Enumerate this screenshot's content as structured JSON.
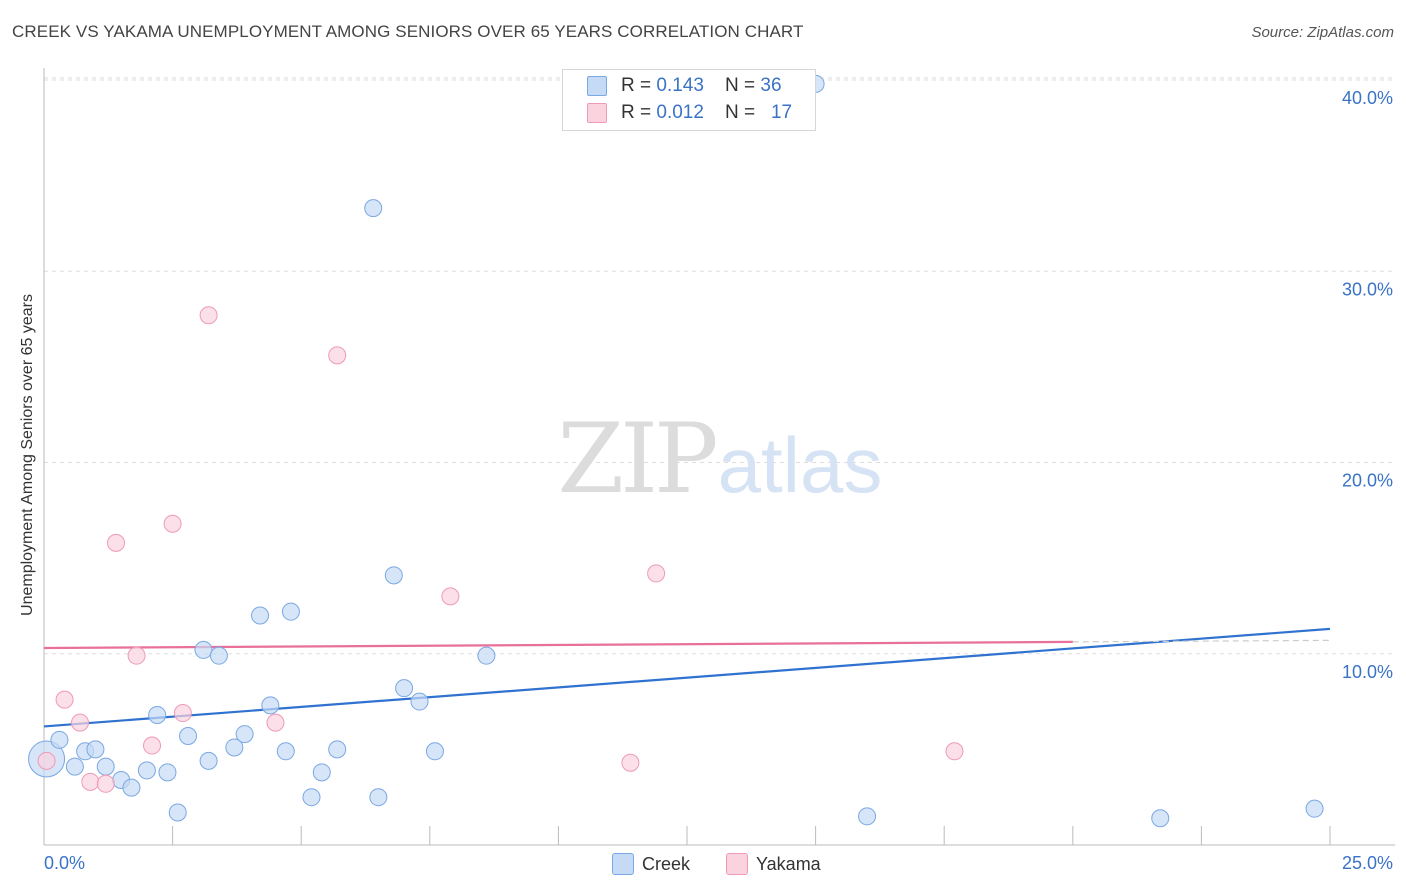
{
  "title": "CREEK VS YAKAMA UNEMPLOYMENT AMONG SENIORS OVER 65 YEARS CORRELATION CHART",
  "source": "Source: ZipAtlas.com",
  "watermark": {
    "part1": "ZIP",
    "part2": "atlas"
  },
  "legend": {
    "rows": [
      {
        "r_label": "R = ",
        "r_value": "0.143",
        "n_label": "N = ",
        "n_value": "36",
        "color": "#a9c8f0",
        "border": "#6f9ee0"
      },
      {
        "r_label": "R = ",
        "r_value": "0.012",
        "n_label": "N = ",
        "n_value": "17",
        "color": "#f8c2d2",
        "border": "#ee8fad"
      }
    ]
  },
  "bottom_legend": {
    "creek": "Creek",
    "yakama": "Yakama"
  },
  "colors": {
    "creek_fill": "#c5daf5",
    "creek_stroke": "#7aa8e2",
    "creek_line": "#2f72d0",
    "yakama_fill": "#fad3df",
    "yakama_stroke": "#ef9ab5",
    "yakama_line": "#e8709a",
    "tick_label": "#3a73c6"
  },
  "chart_data": {
    "type": "scatter",
    "title": "CREEK VS YAKAMA UNEMPLOYMENT AMONG SENIORS OVER 65 YEARS CORRELATION CHART",
    "xlabel": "",
    "ylabel": "Unemployment Among Seniors over 65 years",
    "xlim": [
      0,
      25
    ],
    "ylim": [
      0,
      40
    ],
    "x_tick_labels": [
      "0.0%",
      "25.0%"
    ],
    "y_ticks": [
      10,
      20,
      30,
      40
    ],
    "y_tick_labels": [
      "10.0%",
      "20.0%",
      "30.0%",
      "40.0%"
    ],
    "grid": true,
    "series": [
      {
        "name": "Creek",
        "r": 0.143,
        "n": 36,
        "points": [
          {
            "x": 0.05,
            "y": 4.5,
            "big": true
          },
          {
            "x": 0.3,
            "y": 5.5
          },
          {
            "x": 0.6,
            "y": 4.1
          },
          {
            "x": 0.8,
            "y": 4.9
          },
          {
            "x": 1.0,
            "y": 5.0
          },
          {
            "x": 1.2,
            "y": 4.1
          },
          {
            "x": 1.5,
            "y": 3.4
          },
          {
            "x": 1.7,
            "y": 3.0
          },
          {
            "x": 2.0,
            "y": 3.9
          },
          {
            "x": 2.2,
            "y": 6.8
          },
          {
            "x": 2.4,
            "y": 3.8
          },
          {
            "x": 2.6,
            "y": 1.7
          },
          {
            "x": 2.8,
            "y": 5.7
          },
          {
            "x": 3.1,
            "y": 10.2
          },
          {
            "x": 3.2,
            "y": 4.4
          },
          {
            "x": 3.4,
            "y": 9.9
          },
          {
            "x": 3.7,
            "y": 5.1
          },
          {
            "x": 3.9,
            "y": 5.8
          },
          {
            "x": 4.2,
            "y": 12.0
          },
          {
            "x": 4.4,
            "y": 7.3
          },
          {
            "x": 4.7,
            "y": 4.9
          },
          {
            "x": 4.8,
            "y": 12.2
          },
          {
            "x": 5.2,
            "y": 2.5
          },
          {
            "x": 5.4,
            "y": 3.8
          },
          {
            "x": 5.7,
            "y": 5.0
          },
          {
            "x": 6.4,
            "y": 33.3
          },
          {
            "x": 6.5,
            "y": 2.5
          },
          {
            "x": 6.8,
            "y": 14.1
          },
          {
            "x": 7.0,
            "y": 8.2
          },
          {
            "x": 7.3,
            "y": 7.5
          },
          {
            "x": 7.6,
            "y": 4.9
          },
          {
            "x": 8.6,
            "y": 9.9
          },
          {
            "x": 15.0,
            "y": 39.8
          },
          {
            "x": 16.0,
            "y": 1.5
          },
          {
            "x": 21.7,
            "y": 1.4
          },
          {
            "x": 24.7,
            "y": 1.9
          }
        ],
        "trend": {
          "x1": 0,
          "y1": 6.2,
          "x2": 25,
          "y2": 11.3,
          "dashed_from": null
        }
      },
      {
        "name": "Yakama",
        "r": 0.012,
        "n": 17,
        "points": [
          {
            "x": 0.05,
            "y": 4.4
          },
          {
            "x": 0.4,
            "y": 7.6
          },
          {
            "x": 0.7,
            "y": 6.4
          },
          {
            "x": 0.9,
            "y": 3.3
          },
          {
            "x": 1.2,
            "y": 3.2
          },
          {
            "x": 1.4,
            "y": 15.8
          },
          {
            "x": 1.8,
            "y": 9.9
          },
          {
            "x": 2.1,
            "y": 5.2
          },
          {
            "x": 2.5,
            "y": 16.8
          },
          {
            "x": 2.7,
            "y": 6.9
          },
          {
            "x": 3.2,
            "y": 27.7
          },
          {
            "x": 4.5,
            "y": 6.4
          },
          {
            "x": 5.7,
            "y": 25.6
          },
          {
            "x": 7.9,
            "y": 13.0
          },
          {
            "x": 11.4,
            "y": 4.3
          },
          {
            "x": 11.9,
            "y": 14.2
          },
          {
            "x": 17.7,
            "y": 4.9
          }
        ],
        "trend": {
          "x1": 0,
          "y1": 10.3,
          "x2": 25,
          "y2": 10.7,
          "dashed_from": 20
        }
      }
    ]
  }
}
